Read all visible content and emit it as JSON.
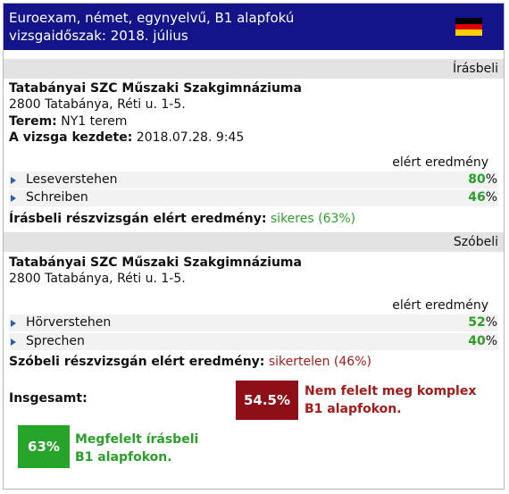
{
  "header": {
    "line1": "Euroexam, német, egynyelvű, B1 alapfokú",
    "line2": "vizsgaidőszak: 2018. július",
    "flag_colors": [
      "#000000",
      "#dd0000",
      "#ffce00"
    ],
    "flag_icon": "germany-flag-icon"
  },
  "written": {
    "section_label": "Írásbeli",
    "school": "Tatabányai SZC Műszaki Szakgimnáziuma",
    "address": "2800 Tatabánya, Réti u. 1-5.",
    "room_label": "Terem:",
    "room_value": "NY1 terem",
    "start_label": "A vizsga kezdete:",
    "start_value": "2018.07.28. 9:45",
    "result_header": "elért eredmény",
    "items": [
      {
        "name": "Leseverstehen",
        "value": "80",
        "unit": "%"
      },
      {
        "name": "Schreiben",
        "value": "46",
        "unit": "%"
      }
    ],
    "summary_label": "Írásbeli részvizsgán elért eredmény:",
    "summary_value": "sikeres (63%)"
  },
  "oral": {
    "section_label": "Szóbeli",
    "school": "Tatabányai SZC Műszaki Szakgimnáziuma",
    "address": "2800 Tatabánya, Réti u. 1-5.",
    "result_header": "elért eredmény",
    "items": [
      {
        "name": "Hörverstehen",
        "value": "52",
        "unit": "%"
      },
      {
        "name": "Sprechen",
        "value": "40",
        "unit": "%"
      }
    ],
    "summary_label": "Szóbeli részvizsgán elért eredmény:",
    "summary_value": "sikertelen (46%)"
  },
  "total": {
    "label": "Insgesamt:",
    "complex_percent": "54.5%",
    "complex_note_line1": "Nem felelt meg komplex",
    "complex_note_line2": "B1 alapfokon.",
    "written_percent": "63%",
    "written_note_line1": "Megfelelt írásbeli",
    "written_note_line2": "B1 alapfokon.",
    "colors": {
      "fail": "#8e0f17",
      "pass": "#27a52a"
    }
  }
}
